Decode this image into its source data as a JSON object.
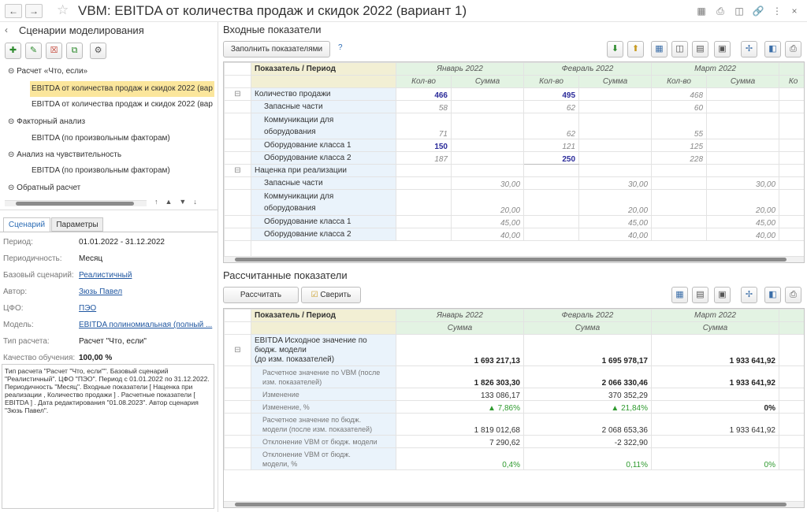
{
  "window": {
    "title": "VBM: EBITDA от количества продаж и скидок 2022 (вариант 1)"
  },
  "left": {
    "header": "Сценарии моделирования",
    "tree": [
      {
        "label": "Расчет «Что, если»",
        "kind": "group"
      },
      {
        "label": "EBITDA от количества продаж и скидок 2022 (вар",
        "kind": "selected"
      },
      {
        "label": "EBITDA от количества продаж и скидок 2022 (вар",
        "kind": "child"
      },
      {
        "label": "Факторный анализ",
        "kind": "group"
      },
      {
        "label": "EBITDA (по произвольным факторам)",
        "kind": "child"
      },
      {
        "label": "Анализ на чувствительность",
        "kind": "group"
      },
      {
        "label": "EBITDA (по произвольным факторам)",
        "kind": "child"
      },
      {
        "label": "Обратный расчет",
        "kind": "group"
      }
    ],
    "tabs": {
      "scenario": "Сценарий",
      "params": "Параметры"
    },
    "props": [
      {
        "label": "Период:",
        "value": "01.01.2022 - 31.12.2022",
        "link": false
      },
      {
        "label": "Периодичность:",
        "value": "Месяц",
        "link": false
      },
      {
        "label": "Базовый сценарий:",
        "value": "Реалистичный",
        "link": true
      },
      {
        "label": "Автор:",
        "value": "Зюзь Павел",
        "link": true
      },
      {
        "label": "ЦФО:",
        "value": "ПЭО",
        "link": true
      },
      {
        "label": "Модель:",
        "value": "EBITDA полиномиальная (полный ...",
        "link": true
      },
      {
        "label": "Тип расчета:",
        "value": "Расчет \"Что, если\"",
        "link": false
      },
      {
        "label": "Качество обучения:",
        "value": "100,00 %",
        "link": false
      }
    ],
    "description": "Тип расчета \"Расчет \"Что, если\"\". Базовый сценарий \"Реалистичный\". ЦФО \"ПЭО\". Период с 01.01.2022 по 31.12.2022. Периодичность \"Месяц\". Входные показатели [ Наценка при реализации , Количество продажи ] . Расчетные показатели [ EBITDA ] . Дата редактирования \"01.08.2023\". Автор сценария \"Зюзь Павел\"."
  },
  "input": {
    "title": "Входные показатели",
    "fill_button": "Заполнить показателями",
    "help": "?",
    "header": "Показатель / Период",
    "periods": [
      "Январь 2022",
      "Февраль 2022",
      "Март 2022"
    ],
    "sub": [
      "Кол-во",
      "Сумма"
    ],
    "cut_col": "Ко",
    "rows": [
      {
        "name": "Количество продажи",
        "group": true,
        "cells": [
          "466",
          "",
          "495",
          "",
          "468",
          ""
        ],
        "bold": [
          true,
          false,
          true,
          false,
          false,
          false
        ]
      },
      {
        "name": "Запасные части",
        "cells": [
          "58",
          "",
          "62",
          "",
          "60",
          ""
        ],
        "bold": [
          false,
          false,
          false,
          false,
          false,
          false
        ]
      },
      {
        "name": "Коммуникации для",
        "name2": "оборудования",
        "cells": [
          "71",
          "",
          "62",
          "",
          "55",
          ""
        ],
        "bold": [
          false,
          false,
          false,
          false,
          false,
          false
        ]
      },
      {
        "name": "Оборудование класса 1",
        "cells": [
          "150",
          "",
          "121",
          "",
          "125",
          ""
        ],
        "bold": [
          true,
          false,
          false,
          false,
          false,
          false
        ]
      },
      {
        "name": "Оборудование класса 2",
        "cells": [
          "187",
          "",
          "250",
          "",
          "228",
          ""
        ],
        "bold": [
          false,
          false,
          true,
          false,
          false,
          false
        ]
      },
      {
        "name": "Наценка при реализации",
        "group": true,
        "cells": [
          "",
          "",
          "",
          "",
          "",
          ""
        ],
        "bold": [
          false,
          false,
          false,
          false,
          false,
          false
        ]
      },
      {
        "name": "Запасные части",
        "cells": [
          "",
          "30,00",
          "",
          "30,00",
          "",
          "30,00"
        ],
        "bold": [
          false,
          false,
          false,
          false,
          false,
          false
        ]
      },
      {
        "name": "Коммуникации для",
        "name2": "оборудования",
        "cells": [
          "",
          "20,00",
          "",
          "20,00",
          "",
          "20,00"
        ],
        "bold": [
          false,
          false,
          false,
          false,
          false,
          false
        ]
      },
      {
        "name": "Оборудование класса 1",
        "cells": [
          "",
          "45,00",
          "",
          "45,00",
          "",
          "45,00"
        ],
        "bold": [
          false,
          false,
          false,
          false,
          false,
          false
        ]
      },
      {
        "name": "Оборудование класса 2",
        "cells": [
          "",
          "40,00",
          "",
          "40,00",
          "",
          "40,00"
        ],
        "bold": [
          false,
          false,
          false,
          false,
          false,
          false
        ]
      }
    ]
  },
  "calc": {
    "title": "Рассчитанные показатели",
    "calc_button": "Рассчитать",
    "check_button": "Сверить",
    "header": "Показатель / Период",
    "periods": [
      "Январь 2022",
      "Февраль 2022",
      "Март 2022"
    ],
    "sub": "Сумма",
    "rows": [
      {
        "name": [
          "EBITDA Исходное значение по",
          "бюдж. модели",
          "(до изм. показателей)"
        ],
        "cells": [
          "1 693 217,13",
          "1 695 978,17",
          "1 933 641,92"
        ],
        "style": "bk"
      },
      {
        "name": [
          "Расчетное значение по VBM (после",
          "изм. показателей)"
        ],
        "cells": [
          "1 826 303,30",
          "2 066 330,46",
          "1 933 641,92"
        ],
        "style": "bk"
      },
      {
        "name": [
          "Изменение"
        ],
        "cells": [
          "133 086,17",
          "370 352,29",
          ""
        ],
        "style": "sn"
      },
      {
        "name": [
          "Изменение, %"
        ],
        "cells": [
          "7,86%",
          "21,84%",
          "0%"
        ],
        "style": "pct"
      },
      {
        "name": [
          "Расчетное значение по бюдж.",
          "модели (после изм. показателей)"
        ],
        "cells": [
          "1 819 012,68",
          "2 068 653,36",
          "1 933 641,92"
        ],
        "style": "sn"
      },
      {
        "name": [
          "Отклонение VBM от бюдж. модели"
        ],
        "cells": [
          "7 290,62",
          "-2 322,90",
          ""
        ],
        "style": "sn"
      },
      {
        "name": [
          "Отклонение VBM от бюдж.",
          "модели, %"
        ],
        "cells": [
          "0,4%",
          "0,11%",
          "0%"
        ],
        "style": "gr"
      }
    ]
  },
  "colors": {
    "accent_green": "#2f9a2f",
    "selected": "#fbe69c",
    "period_header": "#e3f3e3",
    "name_col": "#eaf3fb"
  }
}
